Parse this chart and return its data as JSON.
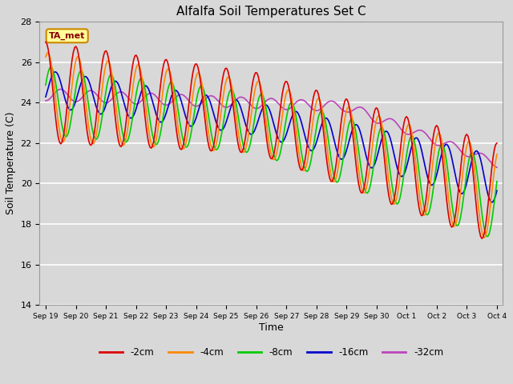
{
  "title": "Alfalfa Soil Temperatures Set C",
  "xlabel": "Time",
  "ylabel": "Soil Temperature (C)",
  "ylim": [
    14,
    28
  ],
  "yticks": [
    14,
    16,
    18,
    20,
    22,
    24,
    26,
    28
  ],
  "bg_color": "#d8d8d8",
  "plot_bg_color": "#d8d8d8",
  "annotation_text": "TA_met",
  "series": {
    "-2cm": {
      "color": "#dd0000",
      "lw": 1.2
    },
    "-4cm": {
      "color": "#ff8800",
      "lw": 1.2
    },
    "-8cm": {
      "color": "#00cc00",
      "lw": 1.2
    },
    "-16cm": {
      "color": "#0000cc",
      "lw": 1.2
    },
    "-32cm": {
      "color": "#bb44bb",
      "lw": 1.2
    }
  },
  "legend_order": [
    "-2cm",
    "-4cm",
    "-8cm",
    "-16cm",
    "-32cm"
  ],
  "xtick_labels": [
    "Sep 19",
    "Sep 20",
    "Sep 21",
    "Sep 22",
    "Sep 23",
    "Sep 24",
    "Sep 25",
    "Sep 26",
    "Sep 27",
    "Sep 28",
    "Sep 29",
    "Sep 30",
    "Oct 1",
    "Oct 2",
    "Oct 3",
    "Oct 4"
  ],
  "figsize": [
    6.4,
    4.8
  ],
  "dpi": 100
}
